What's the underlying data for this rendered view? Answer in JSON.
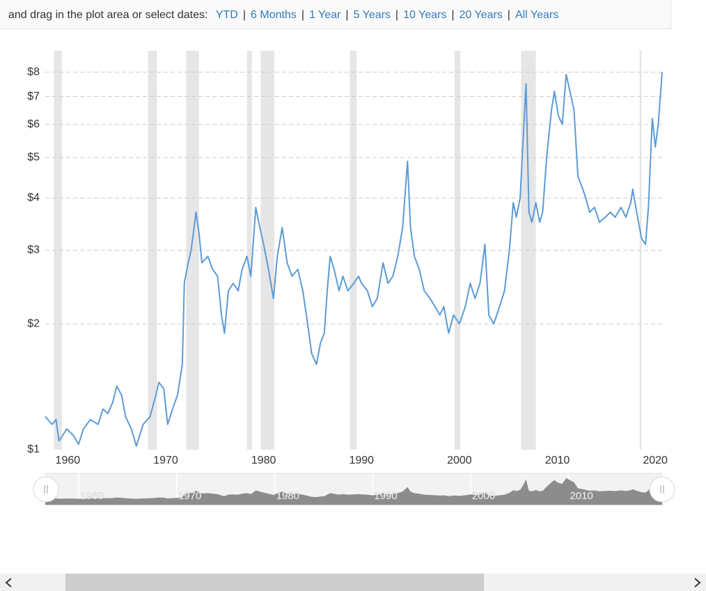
{
  "toolbar": {
    "prompt": "and drag in the plot area or select dates:",
    "separator": "|",
    "ranges": [
      "YTD",
      "6 Months",
      "1 Year",
      "5 Years",
      "10 Years",
      "20 Years",
      "All Years"
    ]
  },
  "chart_data": {
    "type": "line",
    "color": "#5b9bd5",
    "log_scale": true,
    "grid": true,
    "xlim": [
      1957.7,
      2020.7
    ],
    "xticks": [
      1960,
      1970,
      1980,
      1990,
      2000,
      2010,
      2020
    ],
    "ylim": [
      1,
      9
    ],
    "yticks": [
      {
        "value": 1,
        "label": "$1"
      },
      {
        "value": 2,
        "label": "$2"
      },
      {
        "value": 3,
        "label": "$3"
      },
      {
        "value": 4,
        "label": "$4"
      },
      {
        "value": 5,
        "label": "$5"
      },
      {
        "value": 6,
        "label": "$6"
      },
      {
        "value": 7,
        "label": "$7"
      },
      {
        "value": 8,
        "label": "$8"
      }
    ],
    "recessions": [
      [
        1958.6,
        1959.4
      ],
      [
        1968.2,
        1969.1
      ],
      [
        1972.1,
        1973.4
      ],
      [
        1978.3,
        1978.8
      ],
      [
        1979.7,
        1981.1
      ],
      [
        1988.8,
        1989.5
      ],
      [
        1999.5,
        2000.1
      ],
      [
        2006.3,
        2007.8
      ],
      [
        2018.4,
        2018.6
      ]
    ],
    "x": [
      1957.7,
      1958.4,
      1958.8,
      1959.1,
      1959.9,
      1960.6,
      1961.1,
      1961.6,
      1962.3,
      1963.1,
      1963.6,
      1964.1,
      1964.6,
      1965.0,
      1965.5,
      1965.9,
      1966.5,
      1967.0,
      1967.7,
      1968.4,
      1969.0,
      1969.3,
      1969.8,
      1970.2,
      1970.7,
      1971.2,
      1971.7,
      1971.9,
      1972.3,
      1972.6,
      1973.1,
      1973.4,
      1973.7,
      1974.3,
      1974.8,
      1975.3,
      1975.7,
      1976.0,
      1976.4,
      1976.9,
      1977.4,
      1977.8,
      1978.3,
      1978.7,
      1979.2,
      1979.5,
      1980.0,
      1980.5,
      1981.0,
      1981.4,
      1981.9,
      1982.4,
      1982.9,
      1983.5,
      1984.0,
      1984.5,
      1984.9,
      1985.4,
      1985.8,
      1986.2,
      1986.5,
      1986.8,
      1987.2,
      1987.7,
      1988.1,
      1988.6,
      1989.2,
      1989.7,
      1990.0,
      1990.6,
      1991.1,
      1991.6,
      1992.2,
      1992.7,
      1993.2,
      1993.7,
      1994.2,
      1994.7,
      1995.0,
      1995.4,
      1995.9,
      1996.4,
      1997.0,
      1997.5,
      1998.0,
      1998.4,
      1998.9,
      1999.4,
      2000.0,
      2000.6,
      2001.1,
      2001.6,
      2002.1,
      2002.6,
      2003.0,
      2003.5,
      2004.1,
      2004.6,
      2005.1,
      2005.5,
      2005.8,
      2006.2,
      2006.5,
      2006.8,
      2007.1,
      2007.4,
      2007.8,
      2008.2,
      2008.5,
      2008.9,
      2009.4,
      2009.7,
      2010.1,
      2010.5,
      2010.9,
      2011.4,
      2011.7,
      2012.1,
      2012.6,
      2012.9,
      2013.3,
      2013.8,
      2014.3,
      2014.9,
      2015.4,
      2015.9,
      2016.5,
      2017.0,
      2017.5,
      2017.7,
      2018.1,
      2018.6,
      2019.0,
      2019.3,
      2019.7,
      2020.0,
      2020.3,
      2020.7
    ],
    "values": [
      1.2,
      1.15,
      1.18,
      1.05,
      1.12,
      1.08,
      1.03,
      1.12,
      1.18,
      1.15,
      1.25,
      1.22,
      1.3,
      1.42,
      1.35,
      1.2,
      1.12,
      1.02,
      1.15,
      1.2,
      1.35,
      1.45,
      1.4,
      1.15,
      1.25,
      1.35,
      1.6,
      2.5,
      2.8,
      3.0,
      3.7,
      3.3,
      2.8,
      2.9,
      2.7,
      2.6,
      2.1,
      1.9,
      2.4,
      2.5,
      2.4,
      2.7,
      2.9,
      2.6,
      3.8,
      3.5,
      3.1,
      2.7,
      2.3,
      2.9,
      3.4,
      2.8,
      2.6,
      2.7,
      2.4,
      2.0,
      1.7,
      1.6,
      1.8,
      1.9,
      2.4,
      2.9,
      2.7,
      2.4,
      2.6,
      2.4,
      2.5,
      2.6,
      2.5,
      2.4,
      2.2,
      2.3,
      2.8,
      2.5,
      2.6,
      2.9,
      3.4,
      4.9,
      3.4,
      2.9,
      2.7,
      2.4,
      2.3,
      2.2,
      2.1,
      2.2,
      1.9,
      2.1,
      2.0,
      2.2,
      2.5,
      2.3,
      2.5,
      3.1,
      2.1,
      2.0,
      2.2,
      2.4,
      3.0,
      3.9,
      3.6,
      4.0,
      5.5,
      7.5,
      3.7,
      3.5,
      3.9,
      3.5,
      3.7,
      5.0,
      6.5,
      7.2,
      6.3,
      6.0,
      7.9,
      7.0,
      6.5,
      4.5,
      4.2,
      4.0,
      3.7,
      3.8,
      3.5,
      3.6,
      3.7,
      3.6,
      3.8,
      3.6,
      3.9,
      4.2,
      3.7,
      3.2,
      3.1,
      3.8,
      6.2,
      5.3,
      6.0,
      8.0
    ]
  }
}
